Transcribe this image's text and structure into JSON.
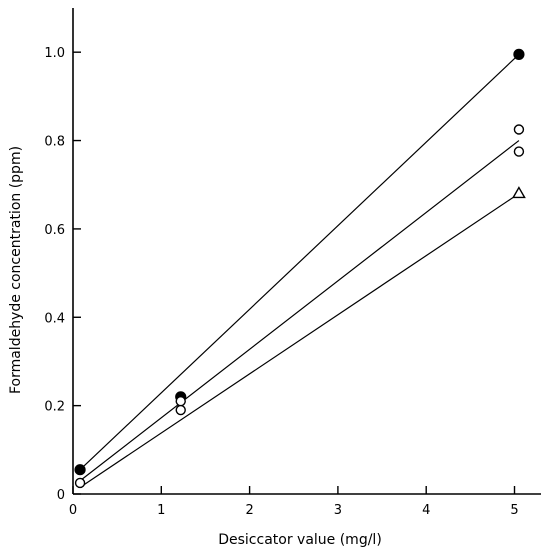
{
  "chart_data": {
    "type": "scatter",
    "xlabel": "Desiccator value (mg/l)",
    "ylabel": "Formaldehyde concentration (ppm)",
    "xlim": [
      0,
      5.3
    ],
    "ylim": [
      0,
      1.1
    ],
    "x_ticks": [
      0,
      1,
      2,
      3,
      4,
      5
    ],
    "x_tick_labels": [
      "0",
      "1",
      "2",
      "3",
      "4",
      "5"
    ],
    "y_ticks": [
      0,
      0.2,
      0.4,
      0.6,
      0.8,
      1.0
    ],
    "y_tick_labels": [
      "0",
      "0.2",
      "0.4",
      "0.6",
      "0.8",
      "1.0"
    ],
    "grid": false,
    "series": [
      {
        "marker": "filled-circle",
        "points": [
          {
            "x": 0.08,
            "y": 0.055
          },
          {
            "x": 1.22,
            "y": 0.22
          },
          {
            "x": 5.05,
            "y": 0.995
          }
        ],
        "fit_line": [
          [
            0.08,
            0.055
          ],
          [
            5.05,
            0.995
          ]
        ]
      },
      {
        "marker": "open-circle",
        "points": [
          {
            "x": 0.08,
            "y": 0.025
          },
          {
            "x": 1.22,
            "y": 0.21
          },
          {
            "x": 1.22,
            "y": 0.19
          },
          {
            "x": 5.05,
            "y": 0.825
          },
          {
            "x": 5.05,
            "y": 0.775
          }
        ],
        "fit_line": [
          [
            0.08,
            0.03
          ],
          [
            5.05,
            0.8
          ]
        ]
      },
      {
        "marker": "open-triangle",
        "points": [
          {
            "x": 5.05,
            "y": 0.68
          }
        ],
        "fit_line": [
          [
            0.08,
            0.015
          ],
          [
            5.05,
            0.68
          ]
        ]
      }
    ]
  }
}
